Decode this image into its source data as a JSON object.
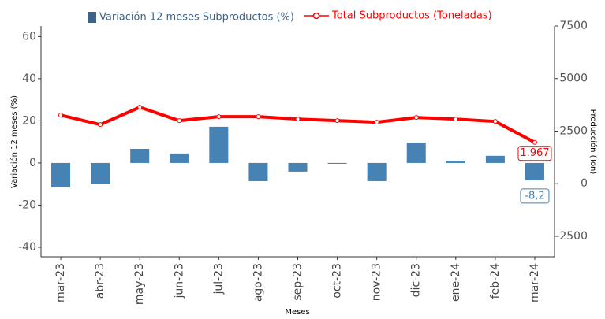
{
  "chart_data": {
    "type": "bar-line",
    "x_label": "Meses",
    "y_label": "Variación 12 meses (%)",
    "y2_label": "Producción (Ton)",
    "categories": [
      "mar-23",
      "abr-23",
      "may-23",
      "jun-23",
      "jul-23",
      "ago-23",
      "sep-23",
      "oct-23",
      "nov-23",
      "dic-23",
      "ene-24",
      "feb-24",
      "mar-24"
    ],
    "series": [
      {
        "name": "Variación 12 meses Subproductos (%)",
        "type": "bar",
        "color": "#4682b4",
        "values": [
          -11.6,
          -10.1,
          6.7,
          4.5,
          17.2,
          -8.6,
          -4.1,
          -0.4,
          -8.6,
          9.7,
          1.1,
          3.4,
          -8.2
        ],
        "value_labels": [
          null,
          null,
          null,
          null,
          null,
          null,
          null,
          null,
          null,
          null,
          null,
          null,
          "-8,2"
        ]
      },
      {
        "name": "Total Subproductos (Toneladas)",
        "type": "line",
        "axis": "y2",
        "color": "#ff0000",
        "values": [
          3261,
          2811,
          3636,
          2999,
          3186,
          3186,
          3073,
          2999,
          2924,
          3148,
          3073,
          2961,
          1967
        ],
        "value_labels": [
          null,
          null,
          null,
          null,
          null,
          null,
          null,
          null,
          null,
          null,
          null,
          null,
          "1.967"
        ]
      }
    ],
    "ylim": [
      -44.5,
      65
    ],
    "yticks": [
      -40,
      -20,
      0,
      20,
      40,
      60
    ],
    "y2lim": [
      -3475,
      7500
    ],
    "y2ticks": [
      -2500,
      0,
      2500,
      5000,
      7500
    ],
    "grid": false
  }
}
